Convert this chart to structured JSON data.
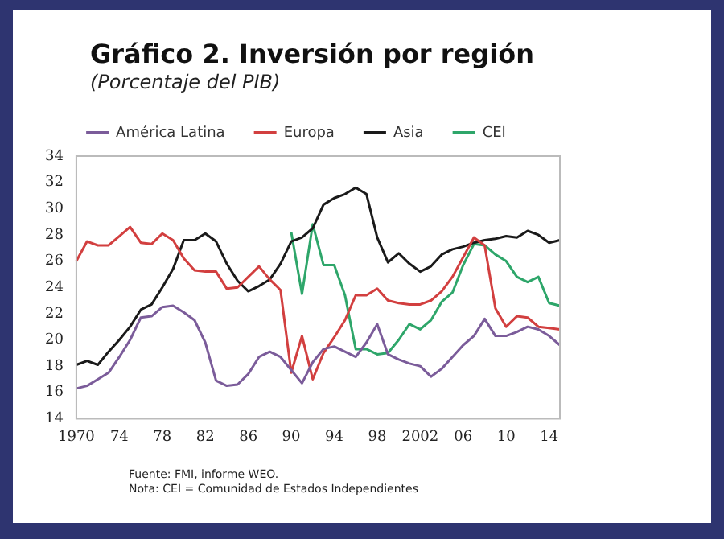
{
  "chart_data": {
    "type": "line",
    "title": "Gráfico 2. Inversión por región",
    "subtitle": "(Porcentaje del PIB)",
    "categories": [
      "1970",
      null,
      null,
      null,
      "74",
      null,
      null,
      null,
      "78",
      null,
      null,
      null,
      "82",
      null,
      null,
      null,
      "86",
      null,
      null,
      null,
      "90",
      null,
      null,
      null,
      "94",
      null,
      null,
      null,
      "98",
      null,
      null,
      null,
      "2002",
      null,
      null,
      null,
      "06",
      null,
      null,
      null,
      "10",
      null,
      null,
      null,
      "14",
      null
    ],
    "series": [
      {
        "name": "América Latina",
        "color": "#7b5c9a",
        "values": [
          16.3,
          16.5,
          17.0,
          17.5,
          18.7,
          20.0,
          21.7,
          21.8,
          22.5,
          22.6,
          22.1,
          21.5,
          19.8,
          16.9,
          16.5,
          16.6,
          17.4,
          18.7,
          19.1,
          18.7,
          17.7,
          16.7,
          18.3,
          19.3,
          19.5,
          19.1,
          18.7,
          19.8,
          21.2,
          18.9,
          18.5,
          18.2,
          18.0,
          17.2,
          17.8,
          18.7,
          19.6,
          20.3,
          21.6,
          20.3,
          20.3,
          20.6,
          21.0,
          20.8,
          20.3,
          19.6
        ]
      },
      {
        "name": "Europa",
        "color": "#d23f3f",
        "values": [
          26.0,
          27.5,
          27.2,
          27.2,
          27.9,
          28.6,
          27.4,
          27.3,
          28.1,
          27.6,
          26.2,
          25.3,
          25.2,
          25.2,
          23.9,
          24.0,
          24.8,
          25.6,
          24.6,
          23.8,
          17.5,
          20.3,
          17.0,
          19.0,
          20.2,
          21.5,
          23.4,
          23.4,
          23.9,
          23.0,
          22.8,
          22.7,
          22.7,
          23.0,
          23.7,
          24.8,
          26.3,
          27.8,
          27.2,
          22.4,
          21.0,
          21.8,
          21.7,
          21.0,
          20.9,
          20.8
        ]
      },
      {
        "name": "Asia",
        "color": "#1a1a1a",
        "values": [
          18.1,
          18.4,
          18.1,
          19.1,
          20.0,
          21.0,
          22.3,
          22.7,
          24.0,
          25.4,
          27.6,
          27.6,
          28.1,
          27.5,
          25.8,
          24.5,
          23.7,
          24.1,
          24.6,
          25.8,
          27.5,
          27.8,
          28.5,
          30.3,
          30.8,
          31.1,
          31.6,
          31.1,
          27.8,
          25.9,
          26.6,
          25.8,
          25.2,
          25.6,
          26.5,
          26.9,
          27.1,
          27.4,
          27.6,
          27.7,
          27.9,
          27.8,
          28.3,
          28.0,
          27.4,
          27.6
        ]
      },
      {
        "name": "CEI",
        "color": "#2ea66a",
        "values": [
          null,
          null,
          null,
          null,
          null,
          null,
          null,
          null,
          null,
          null,
          null,
          null,
          null,
          null,
          null,
          null,
          null,
          null,
          null,
          null,
          28.2,
          23.5,
          28.8,
          25.7,
          25.7,
          23.4,
          19.3,
          19.3,
          18.9,
          19.0,
          20.0,
          21.2,
          20.8,
          21.5,
          22.9,
          23.6,
          25.7,
          27.3,
          27.2,
          26.5,
          26.0,
          24.8,
          24.4,
          24.8,
          22.8,
          22.6
        ]
      }
    ],
    "ylim": [
      14,
      34
    ],
    "yticks": [
      14,
      16,
      18,
      20,
      22,
      24,
      26,
      28,
      30,
      32,
      34
    ],
    "grid": false,
    "legend": "top",
    "marker": "none",
    "line_style": "solid",
    "annotations": [
      "Fuente: FMI, informe WEO.",
      "Nota: CEI = Comunidad de Estados Independientes"
    ]
  }
}
